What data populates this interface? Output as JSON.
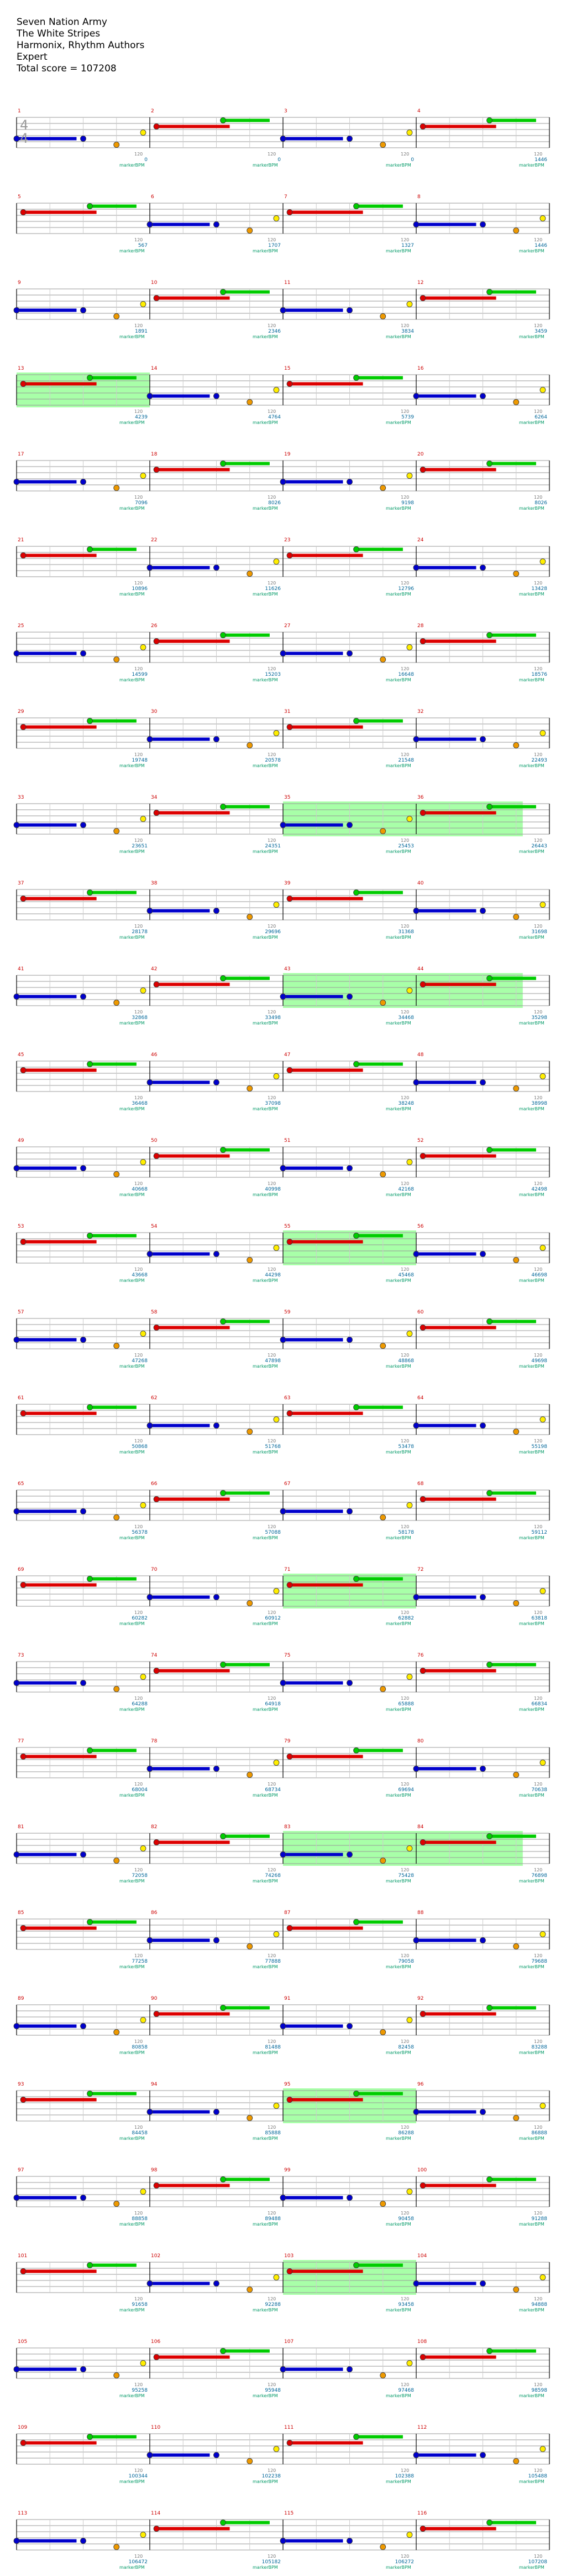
{
  "song": {
    "title": "Seven Nation Army",
    "artist": "The White Stripes",
    "charter": "Harmonix, Rhythm Authors",
    "difficulty": "Expert",
    "total_score_label": "Total score = 107208"
  },
  "chart": {
    "time_signature": [
      "4",
      "4"
    ],
    "measures_per_row": 4,
    "bpm_label": "120",
    "marker_label": "markerBPM",
    "colors": {
      "green": "#00cc00",
      "red": "#dd0000",
      "yellow": "#ffee00",
      "blue": "#0000cc",
      "orange": "#ee9900",
      "starpower": "#99ff99",
      "measure_number": "#cc0000",
      "score": "#006699"
    },
    "row_scores": [
      [
        "0",
        "0",
        "0",
        "1446"
      ],
      [
        "567",
        "1707",
        "1327",
        "1446"
      ],
      [
        "1891",
        "2346",
        "3834",
        "3459"
      ],
      [
        "4239",
        "4764",
        "5739",
        "6264"
      ],
      [
        "7096",
        "8026",
        "9198",
        "8026"
      ],
      [
        "10896",
        "11626",
        "12796",
        "13428"
      ],
      [
        "14599",
        "15203",
        "16648",
        "18576"
      ],
      [
        "19748",
        "20578",
        "21548",
        "22493"
      ],
      [
        "23651",
        "24351",
        "25453",
        "26443"
      ],
      [
        "28178",
        "29696",
        "31368",
        "31698"
      ],
      [
        "32868",
        "33498",
        "34468",
        "35298"
      ],
      [
        "36468",
        "37098",
        "38248",
        "38998"
      ],
      [
        "40668",
        "40998",
        "42168",
        "42498"
      ],
      [
        "43668",
        "44298",
        "45468",
        "46698"
      ],
      [
        "47268",
        "47898",
        "48868",
        "49698"
      ],
      [
        "50868",
        "51768",
        "53478",
        "55198"
      ],
      [
        "56378",
        "57088",
        "58178",
        "59112"
      ],
      [
        "60282",
        "60912",
        "62882",
        "63818"
      ],
      [
        "64288",
        "64918",
        "65888",
        "66834"
      ],
      [
        "68004",
        "68734",
        "69694",
        "70638"
      ],
      [
        "72058",
        "74268",
        "75428",
        "76898"
      ],
      [
        "77258",
        "77888",
        "79058",
        "79688"
      ],
      [
        "80858",
        "81488",
        "82458",
        "83288"
      ],
      [
        "84458",
        "85888",
        "86288",
        "86888"
      ],
      [
        "88858",
        "89488",
        "90458",
        "91288"
      ],
      [
        "91658",
        "92288",
        "93458",
        "94888"
      ],
      [
        "95258",
        "95948",
        "97468",
        "98598"
      ],
      [
        "100344",
        "102238",
        "102388",
        "105488"
      ],
      [
        "106472",
        "105182",
        "106272",
        "107208"
      ]
    ]
  }
}
